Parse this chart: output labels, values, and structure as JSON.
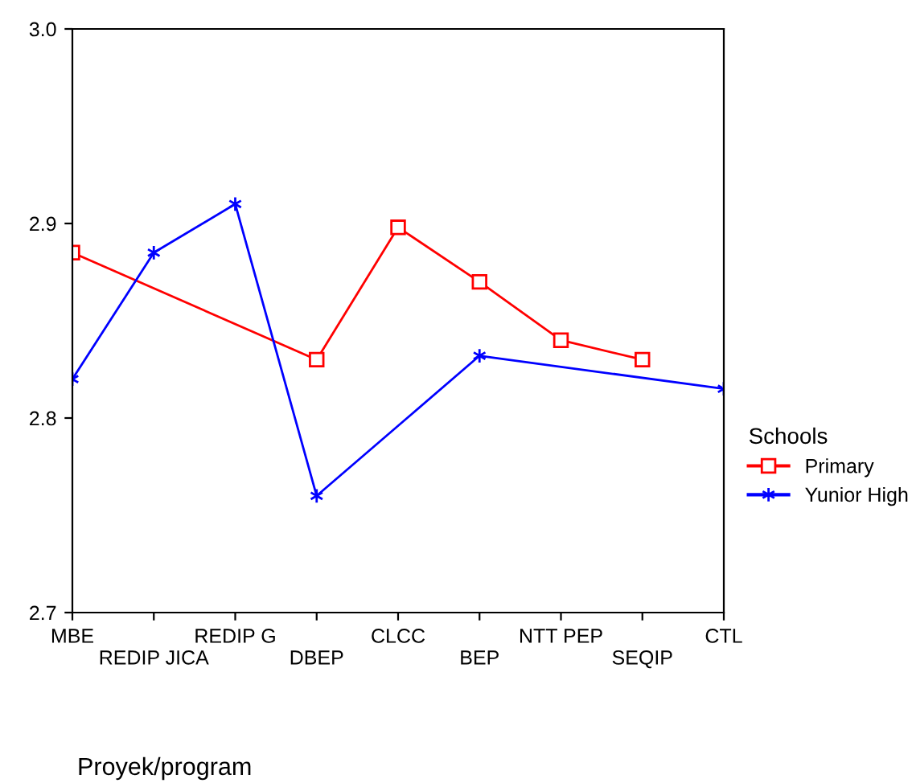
{
  "chart_data": {
    "type": "line",
    "categories": [
      "MBE",
      "REDIP JICA",
      "REDIP G",
      "DBEP",
      "CLCC",
      "BEP",
      "NTT PEP",
      "SEQIP",
      "CTL"
    ],
    "series": [
      {
        "name": "Primary",
        "color": "#ff0000",
        "marker": "square",
        "values": [
          2.885,
          null,
          null,
          2.83,
          2.898,
          2.87,
          2.84,
          2.83,
          null
        ]
      },
      {
        "name": "Yunior High",
        "color": "#0000ff",
        "marker": "cross",
        "values": [
          2.82,
          2.885,
          2.91,
          2.76,
          null,
          2.832,
          null,
          null,
          2.815
        ]
      }
    ],
    "xlabel": "Proyek/program",
    "legend_title": "Schools",
    "legend": "right",
    "ylim": [
      2.7,
      3.0
    ],
    "yticks": [
      2.7,
      2.8,
      2.9,
      {
        "value": 3.0,
        "label": "3.0"
      }
    ],
    "grid": false,
    "line_style": "solid"
  }
}
